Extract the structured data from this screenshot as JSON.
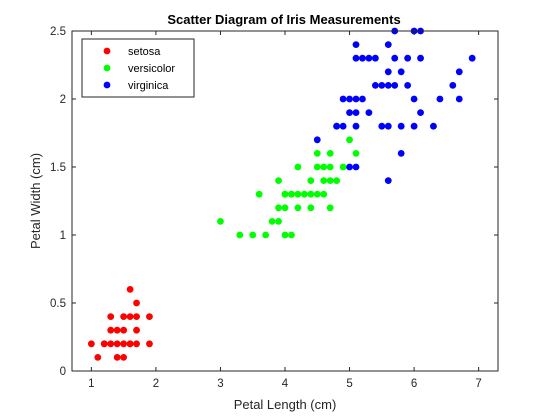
{
  "chart_data": {
    "type": "scatter",
    "title": "Scatter Diagram of Iris Measurements",
    "xlabel": "Petal Length (cm)",
    "ylabel": "Petal Width (cm)",
    "xlim": [
      0.7,
      7.3
    ],
    "ylim": [
      0,
      2.5
    ],
    "xticks": [
      1,
      2,
      3,
      4,
      5,
      6,
      7
    ],
    "yticks": [
      0,
      0.5,
      1,
      1.5,
      2,
      2.5
    ],
    "xtick_labels": [
      "1",
      "2",
      "3",
      "4",
      "5",
      "6",
      "7"
    ],
    "ytick_labels": [
      "0",
      "0.5",
      "1",
      "1.5",
      "2",
      "2.5"
    ],
    "grid": false,
    "legend_position": "top-left",
    "series": [
      {
        "name": "setosa",
        "color": "#ff0000",
        "points": [
          [
            1.0,
            0.2
          ],
          [
            1.1,
            0.1
          ],
          [
            1.2,
            0.2
          ],
          [
            1.3,
            0.2
          ],
          [
            1.3,
            0.3
          ],
          [
            1.3,
            0.4
          ],
          [
            1.4,
            0.1
          ],
          [
            1.4,
            0.2
          ],
          [
            1.4,
            0.3
          ],
          [
            1.5,
            0.1
          ],
          [
            1.5,
            0.2
          ],
          [
            1.5,
            0.3
          ],
          [
            1.5,
            0.4
          ],
          [
            1.6,
            0.2
          ],
          [
            1.6,
            0.4
          ],
          [
            1.6,
            0.6
          ],
          [
            1.7,
            0.2
          ],
          [
            1.7,
            0.3
          ],
          [
            1.7,
            0.4
          ],
          [
            1.7,
            0.5
          ],
          [
            1.9,
            0.2
          ],
          [
            1.9,
            0.4
          ],
          [
            1.2,
            0.2
          ],
          [
            1.6,
            0.2
          ]
        ]
      },
      {
        "name": "versicolor",
        "color": "#00ff00",
        "points": [
          [
            3.0,
            1.1
          ],
          [
            3.3,
            1.0
          ],
          [
            3.5,
            1.0
          ],
          [
            3.6,
            1.3
          ],
          [
            3.7,
            1.0
          ],
          [
            3.8,
            1.1
          ],
          [
            3.9,
            1.1
          ],
          [
            3.9,
            1.2
          ],
          [
            3.9,
            1.4
          ],
          [
            4.0,
            1.0
          ],
          [
            4.0,
            1.2
          ],
          [
            4.0,
            1.3
          ],
          [
            4.1,
            1.0
          ],
          [
            4.1,
            1.3
          ],
          [
            4.2,
            1.2
          ],
          [
            4.2,
            1.3
          ],
          [
            4.2,
            1.5
          ],
          [
            4.3,
            1.3
          ],
          [
            4.4,
            1.2
          ],
          [
            4.4,
            1.3
          ],
          [
            4.4,
            1.4
          ],
          [
            4.5,
            1.3
          ],
          [
            4.5,
            1.5
          ],
          [
            4.5,
            1.6
          ],
          [
            4.6,
            1.3
          ],
          [
            4.6,
            1.4
          ],
          [
            4.6,
            1.5
          ],
          [
            4.7,
            1.2
          ],
          [
            4.7,
            1.4
          ],
          [
            4.7,
            1.5
          ],
          [
            4.7,
            1.6
          ],
          [
            4.8,
            1.4
          ],
          [
            4.8,
            1.8
          ],
          [
            4.9,
            1.5
          ],
          [
            5.0,
            1.7
          ],
          [
            5.1,
            1.6
          ],
          [
            4.1,
            1.3
          ],
          [
            4.0,
            1.3
          ]
        ]
      },
      {
        "name": "virginica",
        "color": "#0000ff",
        "points": [
          [
            4.5,
            1.7
          ],
          [
            4.8,
            1.8
          ],
          [
            4.9,
            1.8
          ],
          [
            4.9,
            2.0
          ],
          [
            5.0,
            1.5
          ],
          [
            5.0,
            1.9
          ],
          [
            5.0,
            2.0
          ],
          [
            5.1,
            1.5
          ],
          [
            5.1,
            1.8
          ],
          [
            5.1,
            1.9
          ],
          [
            5.1,
            2.0
          ],
          [
            5.1,
            2.3
          ],
          [
            5.1,
            2.4
          ],
          [
            5.2,
            2.0
          ],
          [
            5.2,
            2.3
          ],
          [
            5.3,
            1.9
          ],
          [
            5.3,
            2.3
          ],
          [
            5.4,
            2.1
          ],
          [
            5.4,
            2.3
          ],
          [
            5.5,
            1.8
          ],
          [
            5.5,
            2.1
          ],
          [
            5.6,
            1.4
          ],
          [
            5.6,
            1.8
          ],
          [
            5.6,
            2.1
          ],
          [
            5.6,
            2.2
          ],
          [
            5.6,
            2.4
          ],
          [
            5.7,
            2.1
          ],
          [
            5.7,
            2.3
          ],
          [
            5.7,
            2.5
          ],
          [
            5.8,
            1.6
          ],
          [
            5.8,
            1.8
          ],
          [
            5.8,
            2.2
          ],
          [
            5.9,
            2.1
          ],
          [
            5.9,
            2.3
          ],
          [
            6.0,
            1.8
          ],
          [
            6.0,
            2.5
          ],
          [
            6.1,
            1.9
          ],
          [
            6.1,
            2.3
          ],
          [
            6.1,
            2.5
          ],
          [
            6.3,
            1.8
          ],
          [
            6.4,
            2.0
          ],
          [
            6.6,
            2.1
          ],
          [
            6.7,
            2.0
          ],
          [
            6.7,
            2.2
          ],
          [
            6.9,
            2.3
          ],
          [
            6.0,
            2.0
          ]
        ]
      }
    ]
  }
}
